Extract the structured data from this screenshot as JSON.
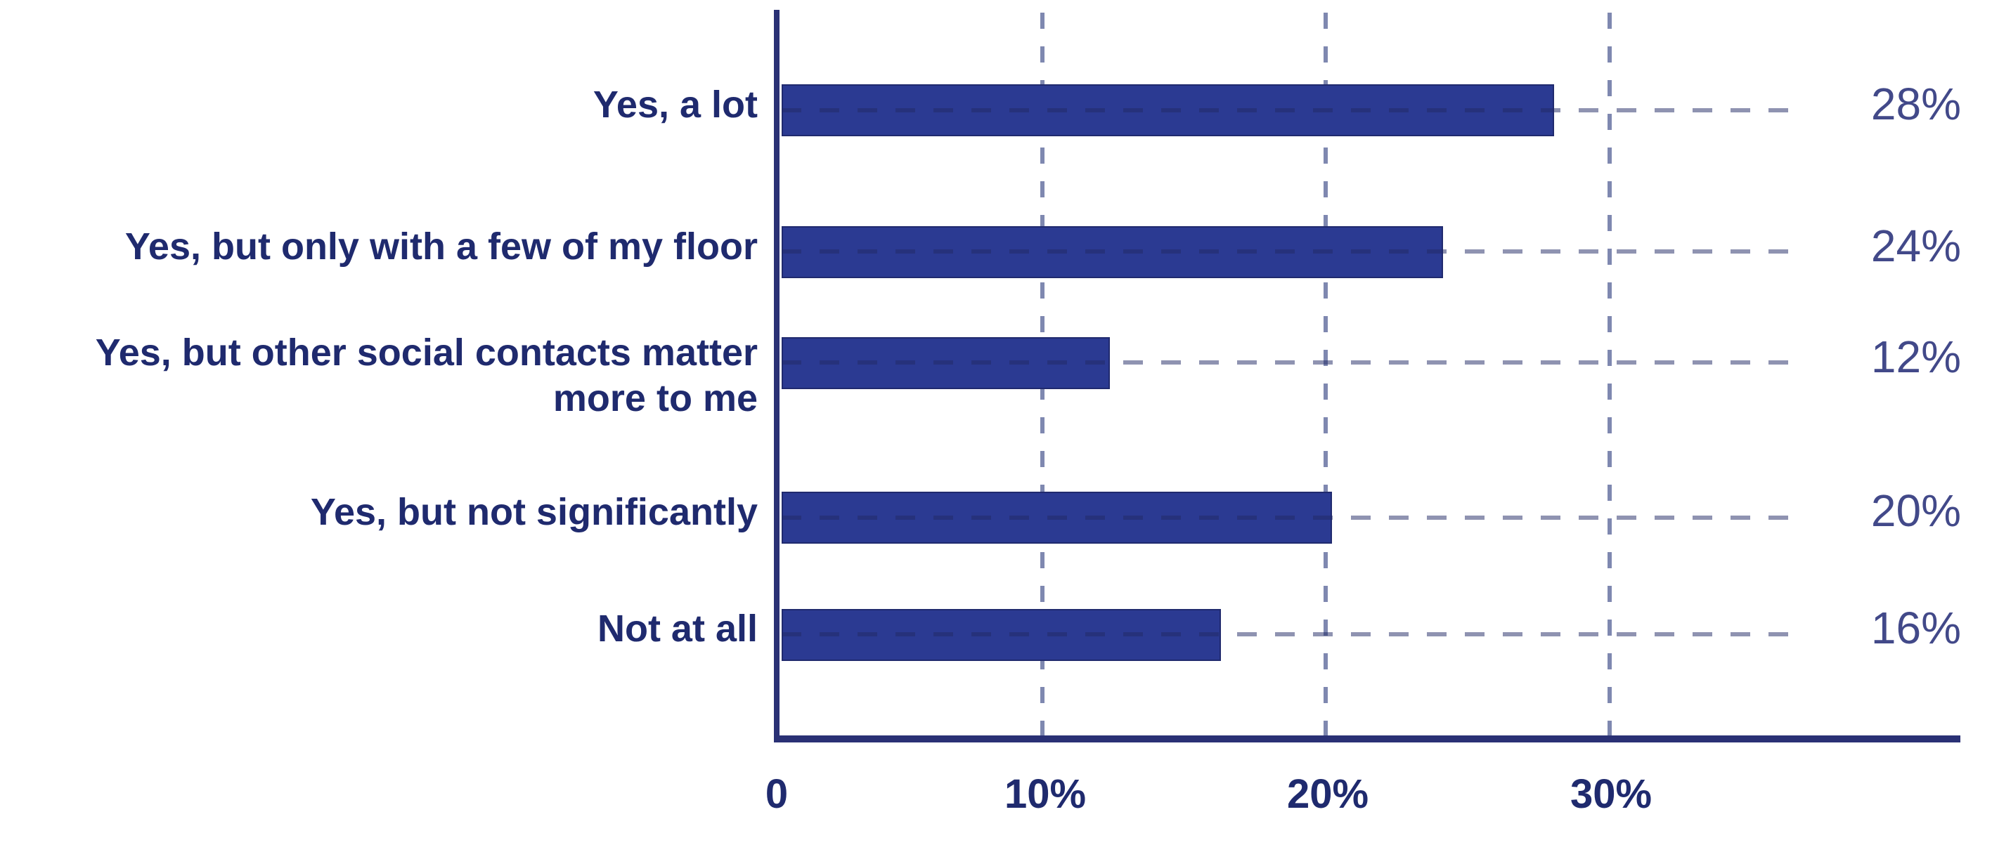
{
  "chart_data": {
    "type": "bar",
    "orientation": "horizontal",
    "categories": [
      "Yes, a lot",
      "Yes, but only with a few of my floor",
      "Yes, but other social contacts matter\nmore to me",
      "Yes, but not significantly",
      "Not at all"
    ],
    "values": [
      28,
      24,
      12,
      20,
      16
    ],
    "value_labels": [
      "28%",
      "24%",
      "12%",
      "20%",
      "16%"
    ],
    "x_ticks": [
      "0",
      "10%",
      "20%",
      "30%"
    ],
    "xlim": [
      0,
      42
    ],
    "grid": "dashed vertical gridlines at 10%, 20%, 30% and dashed horizontal leader line per bar",
    "legend": "none",
    "title": "",
    "colors": {
      "bar": "#2b3a92",
      "bar_border": "#202a6e",
      "axis": "#2a3175",
      "category_label": "#1f2a6e",
      "value_label": "#424989",
      "gridline": "#7f88b0",
      "background": "#ffffff"
    }
  }
}
